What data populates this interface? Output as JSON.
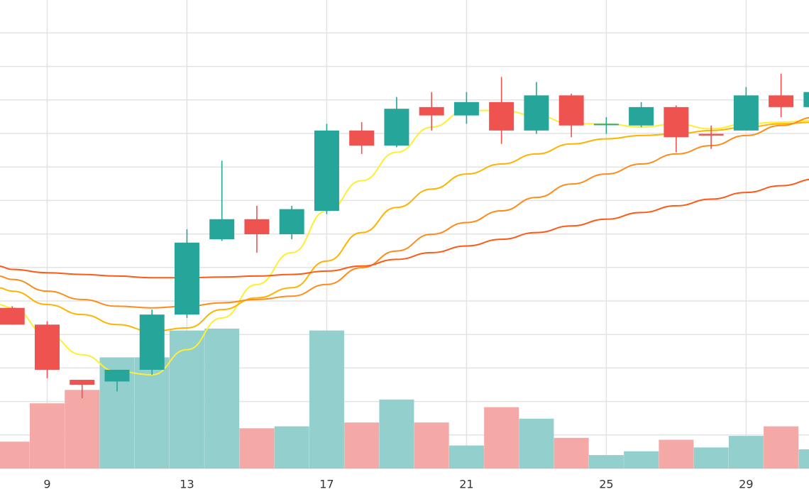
{
  "chart_data": {
    "type": "candlestick",
    "title": "",
    "xlabel": "",
    "ylabel": "",
    "x_tick_labels": [
      "9",
      "13",
      "17",
      "21",
      "25",
      "29"
    ],
    "x_ticks": [
      9,
      13,
      17,
      21,
      25,
      29
    ],
    "xlim": [
      7.65,
      30.8
    ],
    "price_ylim": [
      0,
      14
    ],
    "volume_ylim": [
      0,
      100
    ],
    "grid": true,
    "colors": {
      "up": "#26a69a",
      "down": "#ef5350",
      "up_volume": "#93cfcd",
      "down_volume": "#f4a9a6",
      "grid": "#e3e3e3",
      "ma_series": [
        "#ffee33",
        "#ffb300",
        "#ff8c1a",
        "#ff5a14"
      ]
    },
    "candles": [
      {
        "day": 8,
        "open": 4.8,
        "high": 4.85,
        "low": 4.3,
        "close": 4.3
      },
      {
        "day": 9,
        "open": 4.3,
        "high": 4.4,
        "low": 2.7,
        "close": 2.95
      },
      {
        "day": 10,
        "open": 2.65,
        "high": 2.65,
        "low": 2.1,
        "close": 2.5
      },
      {
        "day": 11,
        "open": 2.6,
        "high": 2.9,
        "low": 2.3,
        "close": 2.95
      },
      {
        "day": 12,
        "open": 2.95,
        "high": 4.75,
        "low": 2.8,
        "close": 4.6
      },
      {
        "day": 13,
        "open": 4.6,
        "high": 7.15,
        "low": 4.5,
        "close": 6.75
      },
      {
        "day": 14,
        "open": 6.85,
        "high": 9.2,
        "low": 6.8,
        "close": 7.45
      },
      {
        "day": 15,
        "open": 7.45,
        "high": 7.85,
        "low": 6.45,
        "close": 7.0
      },
      {
        "day": 16,
        "open": 7.0,
        "high": 7.85,
        "low": 6.85,
        "close": 7.75
      },
      {
        "day": 17,
        "open": 7.7,
        "high": 10.3,
        "low": 7.6,
        "close": 10.1
      },
      {
        "day": 18,
        "open": 10.1,
        "high": 10.35,
        "low": 9.4,
        "close": 9.65
      },
      {
        "day": 19,
        "open": 9.65,
        "high": 11.1,
        "low": 9.6,
        "close": 10.75
      },
      {
        "day": 20,
        "open": 10.8,
        "high": 11.25,
        "low": 10.1,
        "close": 10.55
      },
      {
        "day": 21,
        "open": 10.55,
        "high": 11.25,
        "low": 10.3,
        "close": 10.95
      },
      {
        "day": 22,
        "open": 10.95,
        "high": 11.7,
        "low": 9.7,
        "close": 10.1
      },
      {
        "day": 23,
        "open": 10.1,
        "high": 11.55,
        "low": 10.0,
        "close": 11.15
      },
      {
        "day": 24,
        "open": 11.15,
        "high": 11.2,
        "low": 9.9,
        "close": 10.25
      },
      {
        "day": 25,
        "open": 10.3,
        "high": 10.5,
        "low": 10.0,
        "close": 10.3
      },
      {
        "day": 26,
        "open": 10.25,
        "high": 10.95,
        "low": 10.2,
        "close": 10.8
      },
      {
        "day": 27,
        "open": 10.8,
        "high": 10.85,
        "low": 9.45,
        "close": 9.9
      },
      {
        "day": 28,
        "open": 10.0,
        "high": 10.25,
        "low": 9.55,
        "close": 9.95
      },
      {
        "day": 29,
        "open": 10.1,
        "high": 11.4,
        "low": 10.1,
        "close": 11.15
      },
      {
        "day": 30,
        "open": 11.15,
        "high": 11.8,
        "low": 10.5,
        "close": 10.8
      },
      {
        "day": 31,
        "open": 10.8,
        "high": 11.4,
        "low": 10.5,
        "close": 11.25
      }
    ],
    "volume": [
      {
        "day": 8,
        "value": 14,
        "direction": "down"
      },
      {
        "day": 9,
        "value": 34,
        "direction": "down"
      },
      {
        "day": 10,
        "value": 41,
        "direction": "down"
      },
      {
        "day": 11,
        "value": 58,
        "direction": "up"
      },
      {
        "day": 12,
        "value": 58,
        "direction": "up"
      },
      {
        "day": 13,
        "value": 72,
        "direction": "up"
      },
      {
        "day": 14,
        "value": 73,
        "direction": "up"
      },
      {
        "day": 15,
        "value": 21,
        "direction": "down"
      },
      {
        "day": 16,
        "value": 22,
        "direction": "up"
      },
      {
        "day": 17,
        "value": 72,
        "direction": "up"
      },
      {
        "day": 18,
        "value": 24,
        "direction": "down"
      },
      {
        "day": 19,
        "value": 36,
        "direction": "up"
      },
      {
        "day": 20,
        "value": 24,
        "direction": "down"
      },
      {
        "day": 21,
        "value": 12,
        "direction": "up"
      },
      {
        "day": 22,
        "value": 32,
        "direction": "down"
      },
      {
        "day": 23,
        "value": 26,
        "direction": "up"
      },
      {
        "day": 24,
        "value": 16,
        "direction": "down"
      },
      {
        "day": 25,
        "value": 7,
        "direction": "up"
      },
      {
        "day": 26,
        "value": 9,
        "direction": "up"
      },
      {
        "day": 27,
        "value": 15,
        "direction": "down"
      },
      {
        "day": 28,
        "value": 11,
        "direction": "up"
      },
      {
        "day": 29,
        "value": 17,
        "direction": "up"
      },
      {
        "day": 30,
        "value": 22,
        "direction": "down"
      },
      {
        "day": 31,
        "value": 10,
        "direction": "up"
      }
    ],
    "series": [
      {
        "x": [
          7.6,
          8,
          9,
          10,
          11,
          12,
          13,
          14,
          15,
          16,
          17,
          18,
          19,
          20,
          21,
          22,
          23,
          24,
          25,
          26,
          27,
          28,
          29,
          30,
          31
        ],
        "values": [
          4.9,
          4.8,
          4.0,
          3.4,
          2.9,
          2.8,
          3.55,
          4.5,
          5.5,
          6.45,
          7.7,
          8.6,
          9.45,
          10.2,
          10.7,
          10.7,
          10.55,
          10.3,
          10.3,
          10.2,
          10.3,
          10.15,
          10.3,
          10.35,
          10.4
        ]
      },
      {
        "x": [
          7.6,
          8,
          9,
          10,
          11,
          12,
          13,
          14,
          15,
          16,
          17,
          18,
          19,
          20,
          21,
          22,
          23,
          24,
          25,
          26,
          27,
          28,
          29,
          30,
          31
        ],
        "values": [
          5.4,
          5.3,
          4.9,
          4.6,
          4.3,
          4.1,
          4.2,
          4.75,
          5.1,
          5.4,
          6.2,
          7.05,
          7.8,
          8.35,
          8.8,
          9.1,
          9.4,
          9.7,
          9.85,
          9.95,
          10.0,
          10.1,
          10.2,
          10.3,
          10.35
        ]
      },
      {
        "x": [
          7.6,
          8,
          9,
          10,
          11,
          12,
          13,
          14,
          15,
          16,
          17,
          18,
          19,
          20,
          21,
          22,
          23,
          24,
          25,
          26,
          27,
          28,
          29,
          30,
          31
        ],
        "values": [
          5.75,
          5.65,
          5.3,
          5.05,
          4.85,
          4.8,
          4.85,
          4.95,
          5.05,
          5.15,
          5.5,
          6.0,
          6.5,
          7.0,
          7.35,
          7.7,
          8.1,
          8.5,
          8.8,
          9.1,
          9.4,
          9.65,
          9.95,
          10.25,
          10.5
        ]
      },
      {
        "x": [
          7.6,
          8,
          9,
          10,
          11,
          12,
          13,
          14,
          15,
          16,
          17,
          18,
          19,
          20,
          21,
          22,
          23,
          24,
          25,
          26,
          27,
          28,
          29,
          30,
          31
        ],
        "values": [
          6.05,
          5.95,
          5.85,
          5.8,
          5.75,
          5.7,
          5.7,
          5.72,
          5.75,
          5.8,
          5.9,
          6.05,
          6.25,
          6.45,
          6.65,
          6.85,
          7.05,
          7.25,
          7.45,
          7.65,
          7.85,
          8.05,
          8.25,
          8.45,
          8.65
        ]
      }
    ]
  }
}
